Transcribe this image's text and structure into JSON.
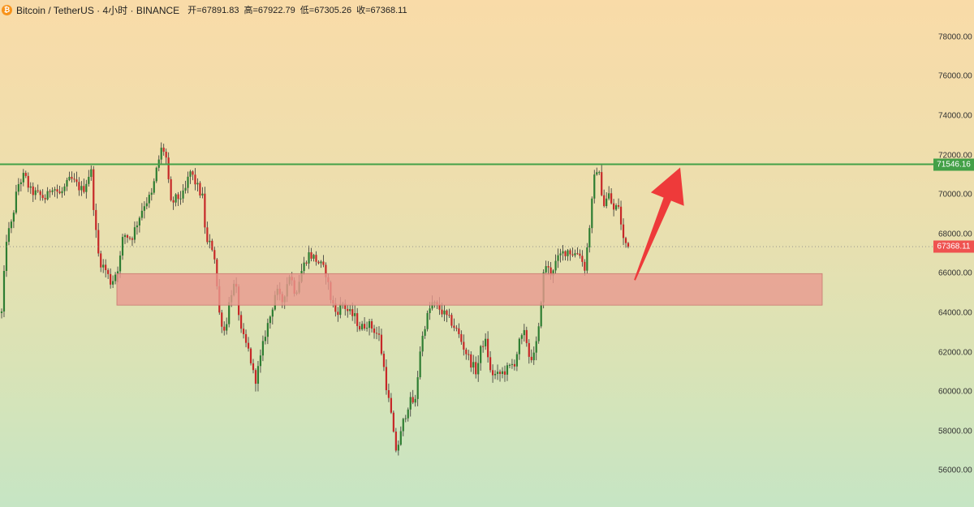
{
  "header": {
    "symbol": "Bitcoin / TetherUS · 4小时 · BINANCE",
    "open": "开=67891.83",
    "high": "高=67922.79",
    "low": "低=67305.26",
    "close": "收=67368.11",
    "logo": "bitcoin-logo"
  },
  "colors": {
    "up": "#2e7d32",
    "down": "#c62828",
    "resistance": "#43a047",
    "zone": "#e8998e",
    "arrow": "#ee3a3a"
  },
  "chart_data": {
    "type": "candlestick",
    "ylim": [
      55000,
      79500
    ],
    "yticks": [
      "78000.00",
      "76000.00",
      "74000.00",
      "72000.00",
      "70000.00",
      "68000.00",
      "66000.00",
      "64000.00",
      "62000.00",
      "60000.00",
      "58000.00",
      "56000.00"
    ],
    "resistance_label": "71546.16",
    "resistance": 71546.16,
    "last_price_label": "67368.11",
    "last_price": 67368.11,
    "support_zone": [
      64400,
      66000
    ],
    "arrow": {
      "from": 66000,
      "to": 71546
    },
    "candle_count": 260,
    "path": [
      [
        0,
        64000
      ],
      [
        6,
        67800
      ],
      [
        12,
        68500
      ],
      [
        20,
        70500
      ],
      [
        28,
        71000
      ],
      [
        35,
        70200
      ],
      [
        45,
        70000
      ],
      [
        55,
        69800
      ],
      [
        62,
        70500
      ],
      [
        72,
        70000
      ],
      [
        85,
        70800
      ],
      [
        100,
        70200
      ],
      [
        110,
        71300
      ],
      [
        115,
        68500
      ],
      [
        120,
        66700
      ],
      [
        128,
        66200
      ],
      [
        135,
        65500
      ],
      [
        145,
        66500
      ],
      [
        150,
        68000
      ],
      [
        160,
        67800
      ],
      [
        175,
        69500
      ],
      [
        185,
        70000
      ],
      [
        192,
        71500
      ],
      [
        198,
        72500
      ],
      [
        203,
        71800
      ],
      [
        208,
        69500
      ],
      [
        215,
        69800
      ],
      [
        225,
        70000
      ],
      [
        232,
        71200
      ],
      [
        240,
        70500
      ],
      [
        248,
        69800
      ],
      [
        252,
        67500
      ],
      [
        258,
        67500
      ],
      [
        262,
        67000
      ],
      [
        268,
        64000
      ],
      [
        275,
        63000
      ],
      [
        282,
        65000
      ],
      [
        288,
        65500
      ],
      [
        295,
        63000
      ],
      [
        305,
        62000
      ],
      [
        312,
        60500
      ],
      [
        318,
        61500
      ],
      [
        325,
        63000
      ],
      [
        332,
        64000
      ],
      [
        338,
        65200
      ],
      [
        345,
        64500
      ],
      [
        355,
        66000
      ],
      [
        362,
        65000
      ],
      [
        370,
        66200
      ],
      [
        378,
        67000
      ],
      [
        385,
        66800
      ],
      [
        392,
        66500
      ],
      [
        400,
        66000
      ],
      [
        405,
        64800
      ],
      [
        412,
        64000
      ],
      [
        420,
        64500
      ],
      [
        428,
        64000
      ],
      [
        435,
        63800
      ],
      [
        442,
        63200
      ],
      [
        450,
        63500
      ],
      [
        458,
        63200
      ],
      [
        465,
        62800
      ],
      [
        470,
        61500
      ],
      [
        475,
        60000
      ],
      [
        480,
        58800
      ],
      [
        485,
        57000
      ],
      [
        490,
        57500
      ],
      [
        495,
        58500
      ],
      [
        502,
        59500
      ],
      [
        510,
        59500
      ],
      [
        515,
        62000
      ],
      [
        522,
        63500
      ],
      [
        530,
        64500
      ],
      [
        540,
        64200
      ],
      [
        548,
        63800
      ],
      [
        555,
        63500
      ],
      [
        562,
        63000
      ],
      [
        570,
        62200
      ],
      [
        578,
        61500
      ],
      [
        585,
        61000
      ],
      [
        592,
        62500
      ],
      [
        597,
        62500
      ],
      [
        602,
        61000
      ],
      [
        610,
        60800
      ],
      [
        618,
        61000
      ],
      [
        625,
        61200
      ],
      [
        632,
        61500
      ],
      [
        638,
        62500
      ],
      [
        645,
        63000
      ],
      [
        650,
        61800
      ],
      [
        656,
        61800
      ],
      [
        662,
        63200
      ],
      [
        666,
        65500
      ],
      [
        670,
        66500
      ],
      [
        676,
        66000
      ],
      [
        682,
        66500
      ],
      [
        690,
        67000
      ],
      [
        697,
        67200
      ],
      [
        705,
        67000
      ],
      [
        712,
        67100
      ],
      [
        718,
        66200
      ],
      [
        722,
        67500
      ],
      [
        727,
        69500
      ],
      [
        732,
        71500
      ],
      [
        736,
        71000
      ],
      [
        742,
        69500
      ],
      [
        748,
        70000
      ],
      [
        754,
        69200
      ],
      [
        760,
        69500
      ],
      [
        765,
        67800
      ],
      [
        768,
        67600
      ],
      [
        772,
        67368
      ]
    ]
  }
}
